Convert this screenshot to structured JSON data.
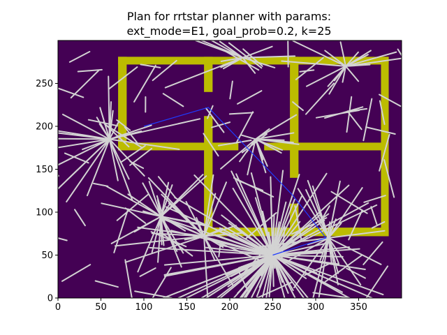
{
  "chart_data": {
    "type": "heatmap",
    "title_lines": [
      "Plan for rrtstar planner with params:",
      "ext_mode=E1, goal_prob=0.2, k=25"
    ],
    "xlim": [
      0,
      400
    ],
    "ylim": [
      0,
      300
    ],
    "x_ticks": [
      0,
      50,
      100,
      150,
      200,
      250,
      300,
      350
    ],
    "y_ticks": [
      0,
      50,
      100,
      150,
      200,
      250
    ],
    "grid": false,
    "colors": {
      "free_space": "#440154",
      "obstacle": "#bcbc00",
      "tree_edge": "#d3d3d3",
      "path": "#1f3cff"
    },
    "walls": [
      {
        "x0": 70,
        "x1": 385,
        "y0": 272,
        "y1": 281
      },
      {
        "x0": 70,
        "x1": 80,
        "y0": 172,
        "y1": 281
      },
      {
        "x0": 70,
        "x1": 210,
        "y0": 172,
        "y1": 181
      },
      {
        "x0": 240,
        "x1": 385,
        "y0": 172,
        "y1": 181
      },
      {
        "x0": 170,
        "x1": 180,
        "y0": 240,
        "y1": 281
      },
      {
        "x0": 170,
        "x1": 180,
        "y0": 72,
        "y1": 212
      },
      {
        "x0": 170,
        "x1": 350,
        "y0": 72,
        "y1": 82
      },
      {
        "x0": 270,
        "x1": 280,
        "y0": 140,
        "y1": 281
      },
      {
        "x0": 270,
        "x1": 280,
        "y0": 72,
        "y1": 110
      },
      {
        "x0": 376,
        "x1": 385,
        "y0": 72,
        "y1": 281
      },
      {
        "x0": 340,
        "x1": 385,
        "y0": 72,
        "y1": 82
      },
      {
        "x0": 310,
        "x1": 340,
        "y0": 272,
        "y1": 281
      }
    ],
    "tree_hubs": [
      {
        "x": 250,
        "y": 50,
        "n": 110,
        "rmin": 15,
        "rmax": 150
      },
      {
        "x": 315,
        "y": 70,
        "n": 22,
        "rmin": 20,
        "rmax": 90
      },
      {
        "x": 60,
        "y": 185,
        "n": 26,
        "rmin": 25,
        "rmax": 110
      },
      {
        "x": 230,
        "y": 185,
        "n": 16,
        "rmin": 15,
        "rmax": 60
      },
      {
        "x": 335,
        "y": 270,
        "n": 16,
        "rmin": 20,
        "rmax": 80
      },
      {
        "x": 170,
        "y": 72,
        "n": 22,
        "rmin": 20,
        "rmax": 110
      },
      {
        "x": 120,
        "y": 95,
        "n": 30,
        "rmin": 20,
        "rmax": 90
      },
      {
        "x": 215,
        "y": 280,
        "n": 12,
        "rmin": 25,
        "rmax": 120
      }
    ],
    "path": [
      [
        100,
        200
      ],
      [
        175,
        222
      ],
      [
        273,
        120
      ],
      [
        312,
        70
      ],
      [
        250,
        50
      ]
    ]
  }
}
